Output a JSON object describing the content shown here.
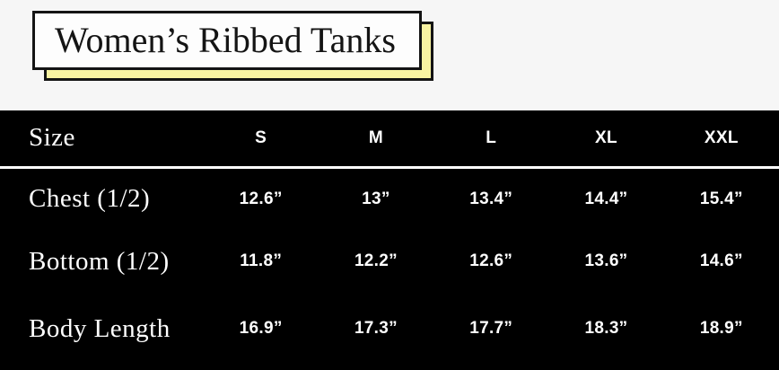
{
  "page": {
    "background": "#f6f6f6"
  },
  "title": {
    "text": "Women’s Ribbed Tanks",
    "box_bg": "#fdfdfd",
    "shadow_bg": "#f8f3a2",
    "border_color": "#141414"
  },
  "size_chart": {
    "colors": {
      "table_bg": "#000000",
      "text": "#ffffff",
      "divider": "#ffffff"
    },
    "header": {
      "label": "Size",
      "columns": [
        "S",
        "M",
        "L",
        "XL",
        "XXL"
      ]
    },
    "rows": [
      {
        "label": "Chest (1/2)",
        "values": [
          "12.6”",
          "13”",
          "13.4”",
          "14.4”",
          "15.4”"
        ]
      },
      {
        "label": "Bottom (1/2)",
        "values": [
          "11.8”",
          "12.2”",
          "12.6”",
          "13.6”",
          "14.6”"
        ]
      },
      {
        "label": "Body Length",
        "values": [
          "16.9”",
          "17.3”",
          "17.7”",
          "18.3”",
          "18.9”"
        ]
      }
    ]
  }
}
